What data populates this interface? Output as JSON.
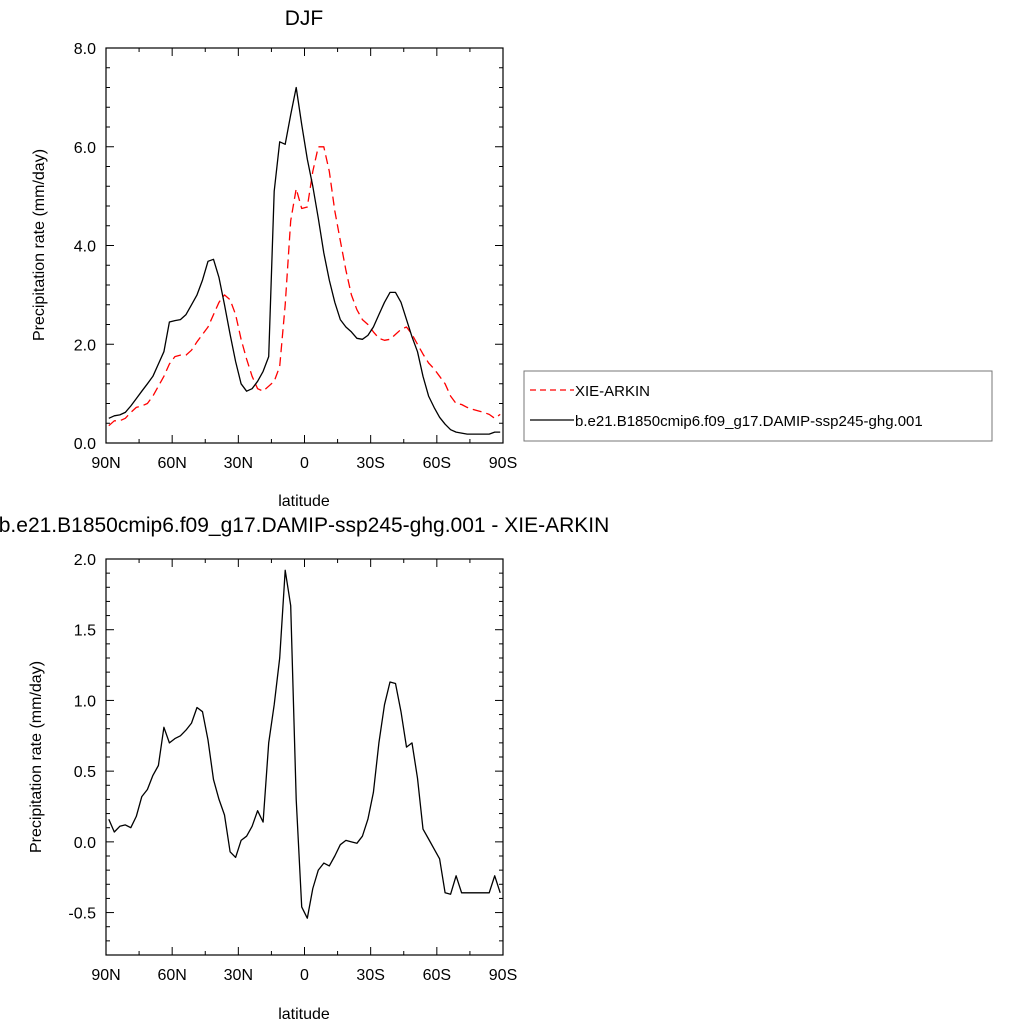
{
  "chart_data": [
    {
      "type": "line",
      "title": "DJF",
      "xlabel": "latitude",
      "ylabel": "Precipitation rate (mm/day)",
      "xlim": [
        -90,
        90
      ],
      "ylim": [
        0,
        8
      ],
      "x_ticks": [
        -90,
        -60,
        -30,
        0,
        30,
        60,
        90
      ],
      "x_tick_labels": [
        "90N",
        "60N",
        "30N",
        "0",
        "30S",
        "60S",
        "90S"
      ],
      "y_ticks": [
        0,
        2,
        4,
        6,
        8
      ],
      "y_tick_labels": [
        "0.0",
        "2.0",
        "4.0",
        "6.0",
        "8.0"
      ],
      "legend_position": "right",
      "series": [
        {
          "name": "XIE-ARKIN",
          "color": "#ff0000",
          "dash": "dashed",
          "x": [
            -88.75,
            -86.25,
            -83.75,
            -81.25,
            -78.75,
            -76.25,
            -73.75,
            -71.25,
            -68.75,
            -66.25,
            -63.75,
            -61.25,
            -58.75,
            -56.25,
            -53.75,
            -51.25,
            -48.75,
            -46.25,
            -43.75,
            -41.25,
            -38.75,
            -36.25,
            -33.75,
            -31.25,
            -28.75,
            -26.25,
            -23.75,
            -21.25,
            -18.75,
            -16.25,
            -13.75,
            -11.25,
            -8.75,
            -6.25,
            -3.75,
            -1.25,
            1.25,
            3.75,
            6.25,
            8.75,
            11.25,
            13.75,
            16.25,
            18.75,
            21.25,
            23.75,
            26.25,
            28.75,
            31.25,
            33.75,
            36.25,
            38.75,
            41.25,
            43.75,
            46.25,
            48.75,
            51.25,
            53.75,
            56.25,
            58.75,
            61.25,
            63.75,
            66.25,
            68.75,
            71.25,
            73.75,
            76.25,
            78.75,
            81.25,
            83.75,
            86.25,
            88.75
          ],
          "values": [
            0.35,
            0.45,
            0.45,
            0.5,
            0.62,
            0.72,
            0.75,
            0.8,
            0.95,
            1.15,
            1.35,
            1.6,
            1.75,
            1.78,
            1.78,
            1.88,
            2.05,
            2.2,
            2.35,
            2.6,
            2.85,
            3.0,
            2.9,
            2.6,
            2.1,
            1.7,
            1.35,
            1.1,
            1.05,
            1.15,
            1.25,
            1.55,
            2.8,
            4.5,
            5.15,
            4.75,
            4.78,
            5.5,
            6.0,
            6.0,
            5.5,
            4.7,
            4.1,
            3.5,
            3.0,
            2.7,
            2.5,
            2.4,
            2.25,
            2.12,
            2.08,
            2.1,
            2.2,
            2.3,
            2.35,
            2.2,
            2.0,
            1.8,
            1.62,
            1.5,
            1.35,
            1.2,
            0.95,
            0.8,
            0.78,
            0.72,
            0.68,
            0.65,
            0.62,
            0.58,
            0.5,
            0.58
          ]
        },
        {
          "name": "b.e21.B1850cmip6.f09_g17.DAMIP-ssp245-ghg.001",
          "color": "#000000",
          "dash": "solid",
          "x": [
            -88.75,
            -86.25,
            -83.75,
            -81.25,
            -78.75,
            -76.25,
            -73.75,
            -71.25,
            -68.75,
            -66.25,
            -63.75,
            -61.25,
            -58.75,
            -56.25,
            -53.75,
            -51.25,
            -48.75,
            -46.25,
            -43.75,
            -41.25,
            -38.75,
            -36.25,
            -33.75,
            -31.25,
            -28.75,
            -26.25,
            -23.75,
            -21.25,
            -18.75,
            -16.25,
            -13.75,
            -11.25,
            -8.75,
            -6.25,
            -3.75,
            -1.25,
            1.25,
            3.75,
            6.25,
            8.75,
            11.25,
            13.75,
            16.25,
            18.75,
            21.25,
            23.75,
            26.25,
            28.75,
            31.25,
            33.75,
            36.25,
            38.75,
            41.25,
            43.75,
            46.25,
            48.75,
            51.25,
            53.75,
            56.25,
            58.75,
            61.25,
            63.75,
            66.25,
            68.75,
            71.25,
            73.75,
            76.25,
            78.75,
            81.25,
            83.75,
            86.25,
            88.75
          ],
          "values": [
            0.5,
            0.55,
            0.57,
            0.62,
            0.75,
            0.9,
            1.05,
            1.2,
            1.35,
            1.6,
            1.85,
            2.45,
            2.48,
            2.5,
            2.6,
            2.8,
            3.0,
            3.3,
            3.68,
            3.72,
            3.35,
            2.8,
            2.2,
            1.65,
            1.2,
            1.05,
            1.1,
            1.25,
            1.45,
            1.75,
            5.1,
            6.1,
            6.05,
            6.65,
            7.2,
            6.45,
            5.75,
            5.2,
            4.55,
            3.85,
            3.3,
            2.85,
            2.5,
            2.35,
            2.25,
            2.12,
            2.1,
            2.18,
            2.35,
            2.6,
            2.85,
            3.05,
            3.05,
            2.85,
            2.5,
            2.15,
            1.85,
            1.35,
            0.95,
            0.72,
            0.52,
            0.38,
            0.27,
            0.22,
            0.2,
            0.18,
            0.18,
            0.18,
            0.18,
            0.18,
            0.22,
            0.22
          ]
        }
      ]
    },
    {
      "type": "line",
      "title": "b.e21.B1850cmip6.f09_g17.DAMIP-ssp245-ghg.001 - XIE-ARKIN",
      "xlabel": "latitude",
      "ylabel": "Precipitation rate (mm/day)",
      "xlim": [
        -90,
        90
      ],
      "ylim": [
        -0.8,
        2.0
      ],
      "x_ticks": [
        -90,
        -60,
        -30,
        0,
        30,
        60,
        90
      ],
      "x_tick_labels": [
        "90N",
        "60N",
        "30N",
        "0",
        "30S",
        "60S",
        "90S"
      ],
      "y_ticks": [
        -0.5,
        0,
        0.5,
        1.0,
        1.5,
        2.0
      ],
      "y_tick_labels": [
        "-0.5",
        "0.0",
        "0.5",
        "1.0",
        "1.5",
        "2.0"
      ],
      "series": [
        {
          "color": "#000000",
          "dash": "solid",
          "x": [
            -88.75,
            -86.25,
            -83.75,
            -81.25,
            -78.75,
            -76.25,
            -73.75,
            -71.25,
            -68.75,
            -66.25,
            -63.75,
            -61.25,
            -58.75,
            -56.25,
            -53.75,
            -51.25,
            -48.75,
            -46.25,
            -43.75,
            -41.25,
            -38.75,
            -36.25,
            -33.75,
            -31.25,
            -28.75,
            -26.25,
            -23.75,
            -21.25,
            -18.75,
            -16.25,
            -13.75,
            -11.25,
            -8.75,
            -6.25,
            -3.75,
            -1.25,
            1.25,
            3.75,
            6.25,
            8.75,
            11.25,
            13.75,
            16.25,
            18.75,
            21.25,
            23.75,
            26.25,
            28.75,
            31.25,
            33.75,
            36.25,
            38.75,
            41.25,
            43.75,
            46.25,
            48.75,
            51.25,
            53.75,
            56.25,
            58.75,
            61.25,
            63.75,
            66.25,
            68.75,
            71.25,
            73.75,
            76.25,
            78.75,
            81.25,
            83.75,
            86.25,
            88.75
          ],
          "values": [
            0.16,
            0.07,
            0.11,
            0.12,
            0.1,
            0.18,
            0.32,
            0.37,
            0.47,
            0.54,
            0.81,
            0.7,
            0.73,
            0.75,
            0.79,
            0.84,
            0.95,
            0.92,
            0.72,
            0.44,
            0.3,
            0.19,
            -0.07,
            -0.11,
            0.01,
            0.04,
            0.11,
            0.22,
            0.14,
            0.7,
            0.97,
            1.3,
            1.92,
            1.67,
            0.3,
            -0.46,
            -0.54,
            -0.33,
            -0.2,
            -0.15,
            -0.17,
            -0.1,
            -0.02,
            0.01,
            0.0,
            -0.01,
            0.04,
            0.16,
            0.35,
            0.7,
            0.97,
            1.13,
            1.12,
            0.92,
            0.67,
            0.7,
            0.45,
            0.09,
            0.02,
            -0.05,
            -0.12,
            -0.36,
            -0.37,
            -0.24,
            -0.36,
            -0.36,
            -0.36,
            -0.36,
            -0.36,
            -0.36,
            -0.24,
            -0.36
          ]
        }
      ]
    }
  ]
}
